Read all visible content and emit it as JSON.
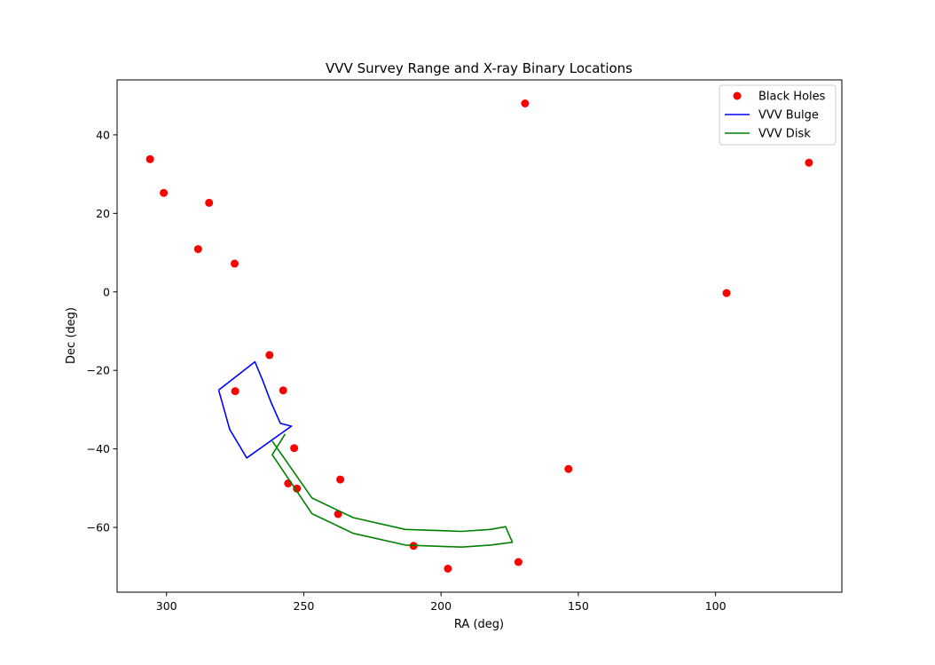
{
  "chart_data": {
    "type": "scatter",
    "title": "VVV Survey Range and X-ray Binary Locations",
    "xlabel": "RA (deg)",
    "ylabel": "Dec (deg)",
    "xlim": [
      318,
      54
    ],
    "ylim": [
      -76.5,
      54
    ],
    "x_inverted": true,
    "xticks": [
      300,
      250,
      200,
      150,
      100
    ],
    "yticks": [
      40,
      20,
      0,
      -20,
      -40,
      -60
    ],
    "xtick_labels": [
      "300",
      "250",
      "200",
      "150",
      "100"
    ],
    "ytick_labels": [
      "40",
      "20",
      "0",
      "−20",
      "−40",
      "−60"
    ],
    "grid": false,
    "legend_position": "top-right",
    "series": [
      {
        "name": "Black Holes",
        "kind": "scatter",
        "color": "#ff0000",
        "points": [
          [
            306,
            33.8
          ],
          [
            301,
            25.2
          ],
          [
            284.5,
            22.7
          ],
          [
            288.5,
            10.9
          ],
          [
            275.2,
            7.2
          ],
          [
            262.5,
            -16.1
          ],
          [
            257.5,
            -25.1
          ],
          [
            275,
            -25.3
          ],
          [
            253.5,
            -39.8
          ],
          [
            255.7,
            -48.8
          ],
          [
            252.5,
            -50.1
          ],
          [
            236.7,
            -47.8
          ],
          [
            237.5,
            -56.6
          ],
          [
            210,
            -64.7
          ],
          [
            197.5,
            -70.5
          ],
          [
            171.8,
            -68.8
          ],
          [
            153.6,
            -45.1
          ],
          [
            169.4,
            48.0
          ],
          [
            96,
            -0.3
          ],
          [
            66,
            32.9
          ]
        ]
      },
      {
        "name": "VVV Bulge",
        "kind": "line",
        "color": "#0000ff",
        "points": [
          [
            281,
            -25
          ],
          [
            267.8,
            -17.8
          ],
          [
            265,
            -22.5
          ],
          [
            262,
            -28
          ],
          [
            258.5,
            -33.5
          ],
          [
            254.5,
            -34.2
          ],
          [
            270.8,
            -42.3
          ],
          [
            277,
            -35
          ],
          [
            281,
            -25
          ]
        ]
      },
      {
        "name": "VVV Disk",
        "kind": "line",
        "color": "#008000",
        "points": [
          [
            261.5,
            -38
          ],
          [
            247,
            -52.5
          ],
          [
            232,
            -57.5
          ],
          [
            213,
            -60.5
          ],
          [
            192.5,
            -61
          ],
          [
            182,
            -60.5
          ],
          [
            176.5,
            -59.8
          ],
          [
            174,
            -63.8
          ],
          [
            182,
            -64.5
          ],
          [
            192.5,
            -65
          ],
          [
            213,
            -64.5
          ],
          [
            232,
            -61.5
          ],
          [
            247,
            -56.5
          ],
          [
            261.5,
            -41.5
          ],
          [
            256.8,
            -36.2
          ]
        ]
      }
    ]
  }
}
